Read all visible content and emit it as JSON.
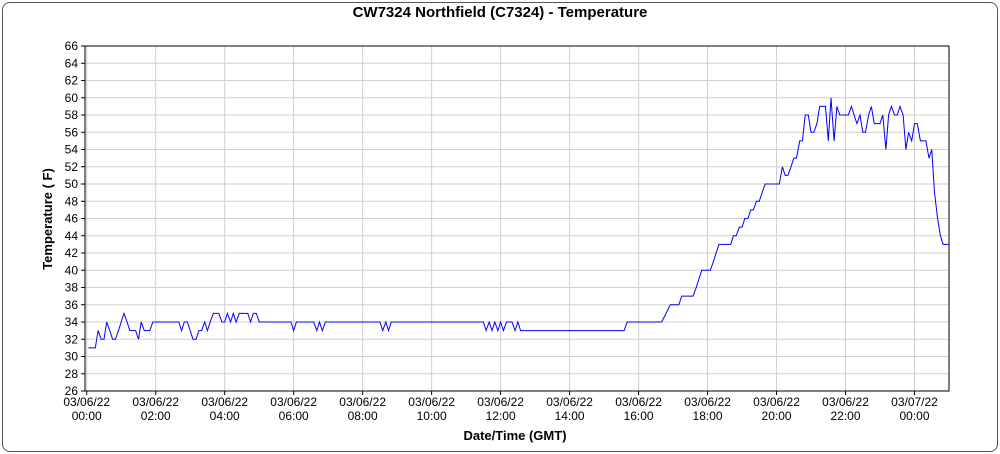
{
  "chart_data": {
    "type": "line",
    "title": "CW7324 Northfield (C7324) - Temperature",
    "xlabel": "Date/Time (GMT)",
    "ylabel": "Temperature ( F)",
    "ylim": [
      26,
      66
    ],
    "yticks": [
      26,
      28,
      30,
      32,
      34,
      36,
      38,
      40,
      42,
      44,
      46,
      48,
      50,
      52,
      54,
      56,
      58,
      60,
      62,
      64,
      66
    ],
    "xlim_hours": [
      -0.05,
      25.0
    ],
    "xticks": [
      {
        "hour": 0,
        "date": "03/06/22",
        "time": "00:00"
      },
      {
        "hour": 2,
        "date": "03/06/22",
        "time": "02:00"
      },
      {
        "hour": 4,
        "date": "03/06/22",
        "time": "04:00"
      },
      {
        "hour": 6,
        "date": "03/06/22",
        "time": "06:00"
      },
      {
        "hour": 8,
        "date": "03/06/22",
        "time": "08:00"
      },
      {
        "hour": 10,
        "date": "03/06/22",
        "time": "10:00"
      },
      {
        "hour": 12,
        "date": "03/06/22",
        "time": "12:00"
      },
      {
        "hour": 14,
        "date": "03/06/22",
        "time": "14:00"
      },
      {
        "hour": 16,
        "date": "03/06/22",
        "time": "16:00"
      },
      {
        "hour": 18,
        "date": "03/06/22",
        "time": "18:00"
      },
      {
        "hour": 20,
        "date": "03/06/22",
        "time": "20:00"
      },
      {
        "hour": 22,
        "date": "03/06/22",
        "time": "22:00"
      },
      {
        "hour": 24,
        "date": "03/07/22",
        "time": "00:00"
      }
    ],
    "grid": true,
    "series_color": "#0000ff",
    "series": [
      {
        "points": [
          [
            0.05,
            31
          ],
          [
            0.25,
            31
          ],
          [
            0.33,
            33
          ],
          [
            0.42,
            32
          ],
          [
            0.5,
            32
          ],
          [
            0.58,
            34
          ],
          [
            0.67,
            33
          ],
          [
            0.75,
            32
          ],
          [
            0.83,
            32
          ],
          [
            0.92,
            33
          ],
          [
            1.0,
            34
          ],
          [
            1.08,
            35
          ],
          [
            1.17,
            34
          ],
          [
            1.25,
            33
          ],
          [
            1.42,
            33
          ],
          [
            1.5,
            32
          ],
          [
            1.58,
            34
          ],
          [
            1.67,
            33
          ],
          [
            1.83,
            33
          ],
          [
            1.92,
            34
          ],
          [
            2.5,
            34
          ],
          [
            2.67,
            34
          ],
          [
            2.75,
            33
          ],
          [
            2.83,
            34
          ],
          [
            2.92,
            34
          ],
          [
            3.0,
            33
          ],
          [
            3.08,
            32
          ],
          [
            3.17,
            32
          ],
          [
            3.25,
            33
          ],
          [
            3.33,
            33
          ],
          [
            3.42,
            34
          ],
          [
            3.5,
            33
          ],
          [
            3.58,
            34
          ],
          [
            3.67,
            35
          ],
          [
            3.83,
            35
          ],
          [
            3.92,
            34
          ],
          [
            4.0,
            34
          ],
          [
            4.08,
            35
          ],
          [
            4.17,
            34
          ],
          [
            4.25,
            35
          ],
          [
            4.33,
            34
          ],
          [
            4.42,
            35
          ],
          [
            4.5,
            35
          ],
          [
            4.67,
            35
          ],
          [
            4.75,
            34
          ],
          [
            4.83,
            35
          ],
          [
            4.92,
            35
          ],
          [
            5.0,
            34
          ],
          [
            5.92,
            34
          ],
          [
            6.0,
            33
          ],
          [
            6.08,
            34
          ],
          [
            6.58,
            34
          ],
          [
            6.67,
            33
          ],
          [
            6.75,
            34
          ],
          [
            6.83,
            33
          ],
          [
            6.92,
            34
          ],
          [
            8.5,
            34
          ],
          [
            8.58,
            33
          ],
          [
            8.67,
            34
          ],
          [
            8.75,
            33
          ],
          [
            8.83,
            34
          ],
          [
            11.5,
            34
          ],
          [
            11.58,
            33
          ],
          [
            11.67,
            34
          ],
          [
            11.75,
            33
          ],
          [
            11.83,
            34
          ],
          [
            11.92,
            33
          ],
          [
            12.0,
            34
          ],
          [
            12.08,
            33
          ],
          [
            12.17,
            34
          ],
          [
            12.33,
            34
          ],
          [
            12.42,
            33
          ],
          [
            12.5,
            34
          ],
          [
            12.58,
            33
          ],
          [
            15.58,
            33
          ],
          [
            15.67,
            34
          ],
          [
            16.67,
            34
          ],
          [
            16.92,
            36
          ],
          [
            17.17,
            36
          ],
          [
            17.25,
            37
          ],
          [
            17.58,
            37
          ],
          [
            17.67,
            38
          ],
          [
            17.83,
            40
          ],
          [
            18.08,
            40
          ],
          [
            18.17,
            41
          ],
          [
            18.33,
            43
          ],
          [
            18.67,
            43
          ],
          [
            18.75,
            44
          ],
          [
            18.83,
            44
          ],
          [
            18.92,
            45
          ],
          [
            19.0,
            45
          ],
          [
            19.08,
            46
          ],
          [
            19.17,
            46
          ],
          [
            19.25,
            47
          ],
          [
            19.33,
            47
          ],
          [
            19.42,
            48
          ],
          [
            19.5,
            48
          ],
          [
            19.58,
            49
          ],
          [
            19.67,
            50
          ],
          [
            20.08,
            50
          ],
          [
            20.17,
            52
          ],
          [
            20.25,
            51
          ],
          [
            20.33,
            51
          ],
          [
            20.42,
            52
          ],
          [
            20.5,
            53
          ],
          [
            20.58,
            53
          ],
          [
            20.67,
            55
          ],
          [
            20.75,
            55
          ],
          [
            20.83,
            58
          ],
          [
            20.92,
            58
          ],
          [
            21.0,
            56
          ],
          [
            21.08,
            56
          ],
          [
            21.17,
            57
          ],
          [
            21.25,
            59
          ],
          [
            21.42,
            59
          ],
          [
            21.5,
            55
          ],
          [
            21.58,
            60
          ],
          [
            21.67,
            55
          ],
          [
            21.75,
            59
          ],
          [
            21.83,
            58
          ],
          [
            22.08,
            58
          ],
          [
            22.17,
            59
          ],
          [
            22.25,
            58
          ],
          [
            22.33,
            57
          ],
          [
            22.42,
            58
          ],
          [
            22.5,
            56
          ],
          [
            22.58,
            56
          ],
          [
            22.67,
            58
          ],
          [
            22.75,
            59
          ],
          [
            22.83,
            57
          ],
          [
            23.0,
            57
          ],
          [
            23.08,
            58
          ],
          [
            23.17,
            54
          ],
          [
            23.25,
            58
          ],
          [
            23.33,
            59
          ],
          [
            23.42,
            58
          ],
          [
            23.5,
            58
          ],
          [
            23.58,
            59
          ],
          [
            23.67,
            58
          ],
          [
            23.75,
            54
          ],
          [
            23.83,
            56
          ],
          [
            23.92,
            55
          ],
          [
            24.0,
            57
          ],
          [
            24.08,
            57
          ],
          [
            24.17,
            55
          ],
          [
            24.33,
            55
          ],
          [
            24.42,
            53
          ],
          [
            24.5,
            54
          ],
          [
            24.58,
            49
          ],
          [
            24.67,
            46
          ],
          [
            24.75,
            44
          ],
          [
            24.83,
            43
          ],
          [
            25.0,
            43
          ]
        ]
      }
    ]
  }
}
